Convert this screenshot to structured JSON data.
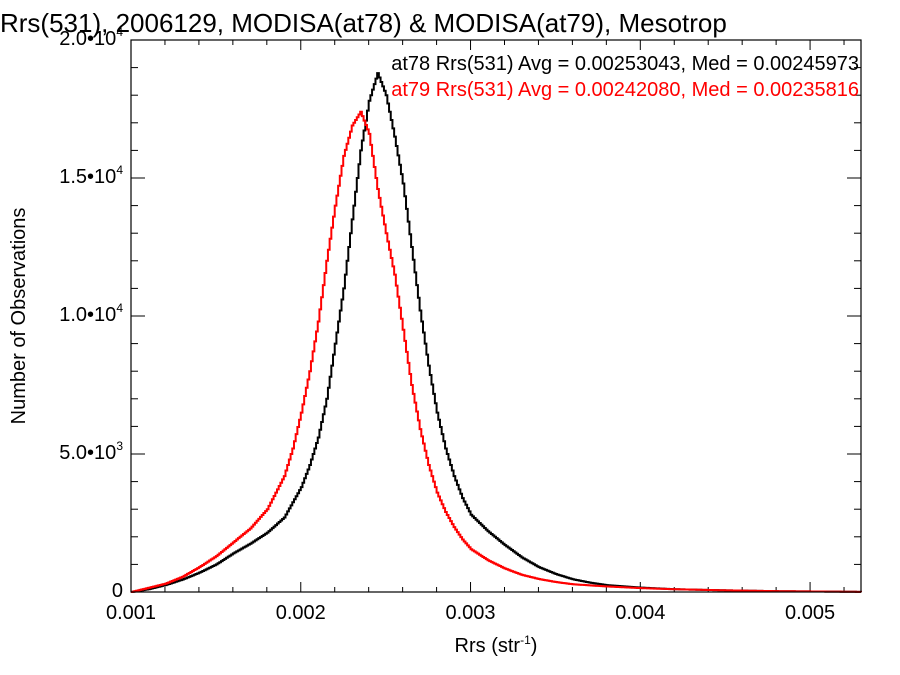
{
  "chart_data": {
    "type": "line",
    "title": "Rrs(531), 2006129, MODISA(at78) & MODISA(at79), Mesotrop",
    "xlabel": "Rrs (str",
    "xlabel_sup": "-1",
    "xlabel_close": ")",
    "ylabel": "Number of Observations",
    "xlim": [
      0.001,
      0.0053
    ],
    "ylim": [
      0,
      20000
    ],
    "xticks": [
      {
        "value": 0.001,
        "label": "0.001"
      },
      {
        "value": 0.002,
        "label": "0.002"
      },
      {
        "value": 0.003,
        "label": "0.003"
      },
      {
        "value": 0.004,
        "label": "0.004"
      },
      {
        "value": 0.005,
        "label": "0.005"
      }
    ],
    "yticks": [
      {
        "value": 0,
        "mant": "0",
        "exp": ""
      },
      {
        "value": 5000,
        "mant": "5.0•10",
        "exp": "3"
      },
      {
        "value": 10000,
        "mant": "1.0•10",
        "exp": "4"
      },
      {
        "value": 15000,
        "mant": "1.5•10",
        "exp": "4"
      },
      {
        "value": 20000,
        "mant": "2.0•10",
        "exp": "4"
      }
    ],
    "grid": false,
    "series": [
      {
        "name": "at78",
        "color": "#000000",
        "annotation": "at78 Rrs(531) Avg = 0.00253043, Med = 0.00245973",
        "points": [
          [
            0.001,
            0
          ],
          [
            0.0011,
            100
          ],
          [
            0.0012,
            250
          ],
          [
            0.0013,
            450
          ],
          [
            0.0014,
            700
          ],
          [
            0.0015,
            1000
          ],
          [
            0.0016,
            1400
          ],
          [
            0.0017,
            1750
          ],
          [
            0.0018,
            2150
          ],
          [
            0.0019,
            2700
          ],
          [
            0.002,
            3800
          ],
          [
            0.00205,
            4600
          ],
          [
            0.0021,
            5600
          ],
          [
            0.00215,
            7000
          ],
          [
            0.0022,
            9000
          ],
          [
            0.00225,
            11000
          ],
          [
            0.0023,
            13500
          ],
          [
            0.00235,
            16000
          ],
          [
            0.0024,
            17800
          ],
          [
            0.00245,
            18800
          ],
          [
            0.0025,
            18000
          ],
          [
            0.00255,
            16500
          ],
          [
            0.0026,
            14800
          ],
          [
            0.00265,
            12500
          ],
          [
            0.0027,
            10200
          ],
          [
            0.00275,
            8200
          ],
          [
            0.0028,
            6500
          ],
          [
            0.00285,
            5200
          ],
          [
            0.0029,
            4200
          ],
          [
            0.00295,
            3400
          ],
          [
            0.003,
            2800
          ],
          [
            0.0031,
            2200
          ],
          [
            0.0032,
            1700
          ],
          [
            0.0033,
            1250
          ],
          [
            0.0034,
            900
          ],
          [
            0.0035,
            650
          ],
          [
            0.0036,
            460
          ],
          [
            0.0037,
            340
          ],
          [
            0.0038,
            250
          ],
          [
            0.004,
            160
          ],
          [
            0.0042,
            100
          ],
          [
            0.0045,
            60
          ],
          [
            0.0048,
            30
          ],
          [
            0.0053,
            5
          ]
        ]
      },
      {
        "name": "at79",
        "color": "#ff0000",
        "annotation": "at79 Rrs(531) Avg = 0.00242080, Med = 0.00235816",
        "points": [
          [
            0.001,
            0
          ],
          [
            0.0011,
            150
          ],
          [
            0.0012,
            300
          ],
          [
            0.0013,
            550
          ],
          [
            0.0014,
            900
          ],
          [
            0.0015,
            1300
          ],
          [
            0.0016,
            1800
          ],
          [
            0.0017,
            2300
          ],
          [
            0.0018,
            3000
          ],
          [
            0.0019,
            4200
          ],
          [
            0.00195,
            5200
          ],
          [
            0.002,
            6500
          ],
          [
            0.00205,
            8000
          ],
          [
            0.0021,
            9800
          ],
          [
            0.00215,
            12000
          ],
          [
            0.0022,
            14000
          ],
          [
            0.00225,
            15800
          ],
          [
            0.0023,
            16900
          ],
          [
            0.00235,
            17400
          ],
          [
            0.0024,
            16600
          ],
          [
            0.00245,
            14600
          ],
          [
            0.0025,
            13000
          ],
          [
            0.00255,
            11500
          ],
          [
            0.0026,
            9500
          ],
          [
            0.00265,
            7500
          ],
          [
            0.0027,
            5900
          ],
          [
            0.00275,
            4600
          ],
          [
            0.0028,
            3600
          ],
          [
            0.00285,
            2900
          ],
          [
            0.0029,
            2350
          ],
          [
            0.00295,
            1900
          ],
          [
            0.003,
            1550
          ],
          [
            0.0031,
            1150
          ],
          [
            0.0032,
            850
          ],
          [
            0.0033,
            620
          ],
          [
            0.0034,
            470
          ],
          [
            0.0035,
            360
          ],
          [
            0.0036,
            280
          ],
          [
            0.0038,
            200
          ],
          [
            0.004,
            140
          ],
          [
            0.0042,
            100
          ],
          [
            0.0045,
            60
          ],
          [
            0.0048,
            30
          ],
          [
            0.0053,
            5
          ]
        ]
      }
    ]
  }
}
